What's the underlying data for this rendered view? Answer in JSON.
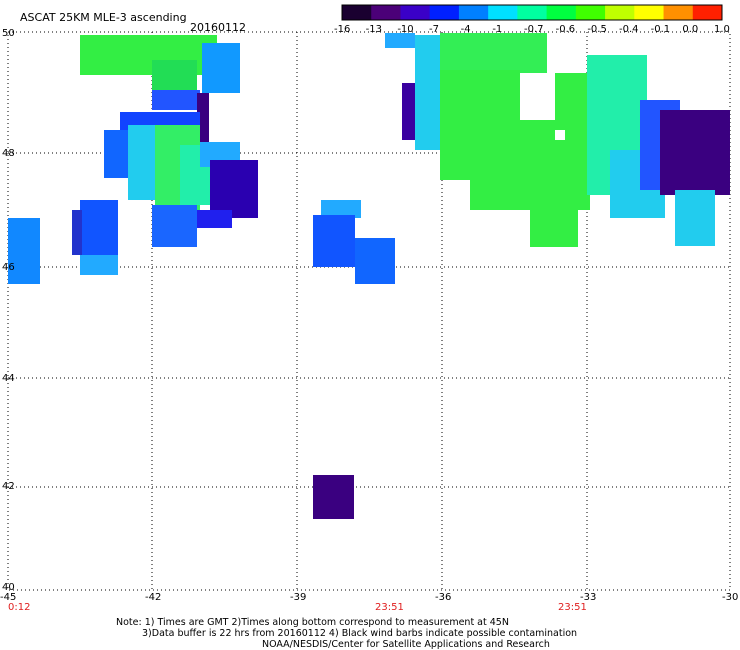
{
  "title": "ASCAT 25KM MLE-3 ascending",
  "date": "20160112",
  "colorbar": {
    "labels": [
      "-16",
      "-13",
      "-10",
      "-7",
      "-4",
      "-1",
      "-0.7",
      "-0.6",
      "-0.5",
      "-0.4",
      "-0.1",
      "0.0",
      "1.0"
    ],
    "colors": [
      "#1a0030",
      "#4b0078",
      "#3a00c8",
      "#0020ff",
      "#0080ff",
      "#00e0ff",
      "#00ffa0",
      "#00ff40",
      "#40ff00",
      "#c0ff00",
      "#ffff00",
      "#ff9000",
      "#ff2000"
    ]
  },
  "y_ticks": [
    "50",
    "48",
    "46",
    "44",
    "42",
    "40"
  ],
  "x_ticks": [
    "-45",
    "-42",
    "-39",
    "-36",
    "-33",
    "-30"
  ],
  "time_labels": [
    "0:12",
    "23:51",
    "23:51"
  ],
  "notes": {
    "line1": "Note: 1) Times are GMT 2)Times along bottom correspond to measurement at 45N",
    "line2": "3)Data buffer is 22 hrs from 20160112 4) Black wind barbs indicate possible contamination",
    "line3": "NOAA/NESDIS/Center for Satellite Applications and Research"
  }
}
